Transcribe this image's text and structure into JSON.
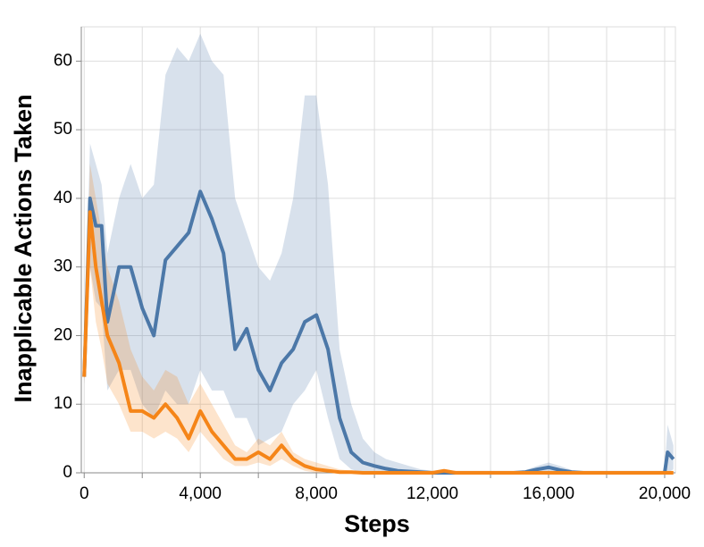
{
  "chart_data": {
    "type": "line",
    "xlabel": "Steps",
    "ylabel": "Inapplicable Actions Taken",
    "x": [
      0,
      200,
      400,
      600,
      800,
      1200,
      1600,
      2000,
      2400,
      2800,
      3200,
      3600,
      4000,
      4400,
      4800,
      5200,
      5600,
      6000,
      6400,
      6800,
      7200,
      7600,
      8000,
      8400,
      8800,
      9200,
      9600,
      10000,
      10400,
      10800,
      11200,
      11600,
      12000,
      12400,
      12800,
      13200,
      13600,
      14000,
      14400,
      14800,
      15200,
      15600,
      16000,
      16400,
      16800,
      17200,
      17600,
      18000,
      18400,
      18800,
      19200,
      19600,
      20000,
      20100,
      20300
    ],
    "series": [
      {
        "color": "#4c78a8",
        "values": [
          14,
          40,
          36,
          36,
          22,
          30,
          30,
          24,
          20,
          31,
          33,
          35,
          41,
          37,
          32,
          18,
          21,
          15,
          12,
          16,
          18,
          22,
          23,
          18,
          8,
          3,
          1.5,
          1,
          0.6,
          0.3,
          0.2,
          0.1,
          0,
          0,
          0,
          0,
          0,
          0,
          0,
          0,
          0.1,
          0.5,
          0.8,
          0.4,
          0.1,
          0,
          0,
          0,
          0,
          0,
          0,
          0,
          0,
          3,
          2
        ],
        "lower": [
          13,
          30,
          25,
          24,
          12,
          15,
          15,
          10,
          8,
          12,
          10,
          10,
          15,
          12,
          12,
          8,
          8,
          4,
          5,
          6,
          10,
          12,
          15,
          8,
          2,
          0.5,
          0,
          0,
          0,
          0,
          0,
          0,
          0,
          0,
          0,
          0,
          0,
          0,
          0,
          0,
          0,
          0,
          0,
          0,
          0,
          0,
          0,
          0,
          0,
          0,
          0,
          0,
          0,
          0,
          0.5
        ],
        "upper": [
          18,
          48,
          45,
          42,
          32,
          40,
          45,
          40,
          42,
          58,
          62,
          60,
          64,
          60,
          58,
          40,
          35,
          30,
          28,
          32,
          40,
          55,
          55,
          42,
          18,
          10,
          5,
          3,
          2,
          1.5,
          1,
          0.5,
          0.3,
          0.3,
          0.3,
          0.3,
          0.3,
          0.3,
          0.3,
          0.3,
          0.4,
          1,
          1.5,
          1,
          0.4,
          0.3,
          0.3,
          0.3,
          0.3,
          0.3,
          0.3,
          0.3,
          0.3,
          7,
          4
        ]
      },
      {
        "color": "#f58518",
        "values": [
          14,
          38,
          30,
          25,
          20,
          16,
          9,
          9,
          8,
          10,
          8,
          5,
          9,
          6,
          4,
          2,
          2,
          3,
          2,
          4,
          2,
          1,
          0.5,
          0.3,
          0.1,
          0.1,
          0,
          0,
          0,
          0,
          0,
          0,
          0,
          0.3,
          0,
          0,
          0,
          0,
          0,
          0,
          0,
          0,
          0,
          0,
          0,
          0,
          0,
          0,
          0,
          0,
          0,
          0,
          0,
          0,
          0
        ],
        "lower": [
          13,
          30,
          22,
          18,
          13,
          10,
          6,
          6,
          5,
          6,
          5,
          3,
          6,
          4,
          2,
          1,
          1,
          1.5,
          1,
          2,
          1,
          0.3,
          0,
          0,
          0,
          0,
          0,
          0,
          0,
          0,
          0,
          0,
          0,
          0,
          0,
          0,
          0,
          0,
          0,
          0,
          0,
          0,
          0,
          0,
          0,
          0,
          0,
          0,
          0,
          0,
          0,
          0,
          0,
          0,
          0
        ],
        "upper": [
          15,
          45,
          40,
          35,
          30,
          25,
          18,
          14,
          12,
          15,
          14,
          10,
          13,
          10,
          7,
          4,
          3,
          5,
          4,
          6,
          3,
          2,
          1.5,
          1,
          0.5,
          0.3,
          0.3,
          0.3,
          0.3,
          0.3,
          0.3,
          0.3,
          0.3,
          0.3,
          0.3,
          0.3,
          0.3,
          0.3,
          0.3,
          0.3,
          0.3,
          0.3,
          0.3,
          0.3,
          0.3,
          0.3,
          0.3,
          0.3,
          0.3,
          0.3,
          0.3,
          0.3,
          0.3,
          0.3,
          0.3
        ]
      }
    ],
    "band_opacity": 0.22,
    "xlim": [
      -100,
      20370
    ],
    "ylim": [
      0,
      65
    ],
    "xticks": [
      0,
      {
        "value": 4000,
        "label": "4,000"
      },
      {
        "value": 8000,
        "label": "8,000"
      },
      {
        "value": 12000,
        "label": "12,000"
      },
      {
        "value": 16000,
        "label": "16,000"
      },
      {
        "value": 20000,
        "label": "20,000"
      }
    ],
    "xminor": [
      2000,
      6000,
      10000,
      14000,
      18000
    ],
    "yticks": [
      0,
      10,
      20,
      30,
      40,
      50,
      60
    ],
    "grid": true
  }
}
